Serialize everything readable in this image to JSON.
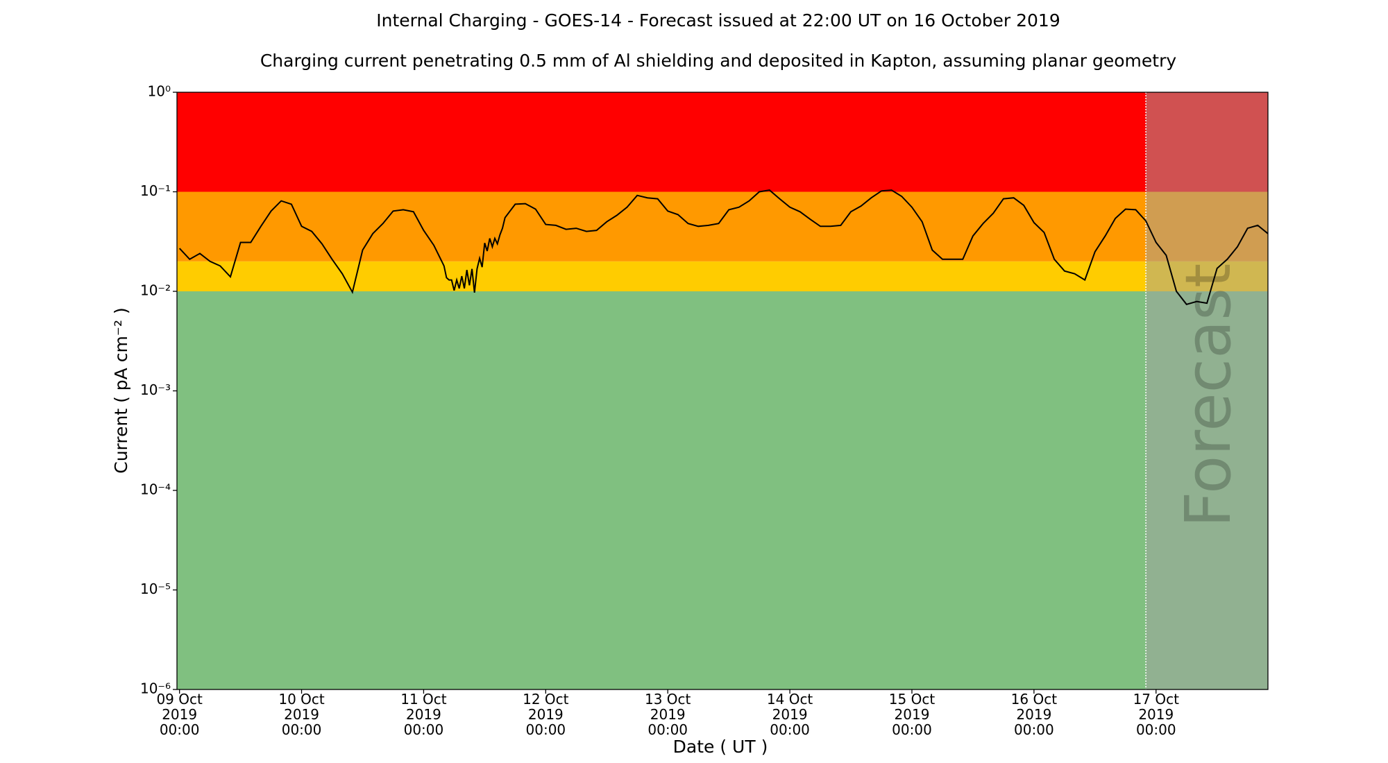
{
  "chart_data": {
    "type": "line",
    "title": "Internal Charging - GOES-14 - Forecast issued at 22:00 UT on 16 October 2019",
    "subtitle": "Charging current penetrating 0.5 mm of Al shielding and deposited in Kapton, assuming planar geometry",
    "x_label": "Date ( UT )",
    "y_label": "Current ( pA cm⁻² )",
    "log_y": true,
    "ylim": [
      1e-06,
      1
    ],
    "yticks": [
      {
        "value": 1,
        "label": "10⁰"
      },
      {
        "value": 0.1,
        "label": "10⁻¹"
      },
      {
        "value": 0.01,
        "label": "10⁻²"
      },
      {
        "value": 0.001,
        "label": "10⁻³"
      },
      {
        "value": 0.0001,
        "label": "10⁻⁴"
      },
      {
        "value": 1e-05,
        "label": "10⁻⁵"
      },
      {
        "value": 1e-06,
        "label": "10⁻⁶"
      }
    ],
    "xlim": [
      "2019-10-08T23:30",
      "2019-10-17T22:00"
    ],
    "xticks": [
      {
        "value": "2019-10-09T00:00",
        "label": "09 Oct\n2019\n00:00"
      },
      {
        "value": "2019-10-10T00:00",
        "label": "10 Oct\n2019\n00:00"
      },
      {
        "value": "2019-10-11T00:00",
        "label": "11 Oct\n2019\n00:00"
      },
      {
        "value": "2019-10-12T00:00",
        "label": "12 Oct\n2019\n00:00"
      },
      {
        "value": "2019-10-13T00:00",
        "label": "13 Oct\n2019\n00:00"
      },
      {
        "value": "2019-10-14T00:00",
        "label": "14 Oct\n2019\n00:00"
      },
      {
        "value": "2019-10-15T00:00",
        "label": "15 Oct\n2019\n00:00"
      },
      {
        "value": "2019-10-16T00:00",
        "label": "16 Oct\n2019\n00:00"
      },
      {
        "value": "2019-10-17T00:00",
        "label": "17 Oct\n2019\n00:00"
      }
    ],
    "band_thresholds": [
      0.01,
      0.02,
      0.1
    ],
    "band_colors": [
      "#80c080",
      "#ffcc00",
      "#ff9900",
      "#ff0000"
    ],
    "forecast": {
      "start": "2019-10-16T22:00",
      "label": "Forecast",
      "color": "#a2a2a2",
      "opacity": 0.5
    },
    "color": "#000000",
    "x": [
      "2019-10-09T00:00",
      "2019-10-09T02:00",
      "2019-10-09T04:00",
      "2019-10-09T06:00",
      "2019-10-09T08:00",
      "2019-10-09T10:00",
      "2019-10-09T12:00",
      "2019-10-09T14:00",
      "2019-10-09T16:00",
      "2019-10-09T18:00",
      "2019-10-09T20:00",
      "2019-10-09T22:00",
      "2019-10-10T00:00",
      "2019-10-10T02:00",
      "2019-10-10T04:00",
      "2019-10-10T06:00",
      "2019-10-10T08:00",
      "2019-10-10T10:00",
      "2019-10-10T12:00",
      "2019-10-10T14:00",
      "2019-10-10T16:00",
      "2019-10-10T18:00",
      "2019-10-10T20:00",
      "2019-10-10T22:00",
      "2019-10-11T00:00",
      "2019-10-11T02:00",
      "2019-10-11T04:00",
      "2019-10-11T04:30",
      "2019-10-11T05:00",
      "2019-10-11T05:30",
      "2019-10-11T06:00",
      "2019-10-11T06:30",
      "2019-10-11T07:00",
      "2019-10-11T07:30",
      "2019-10-11T08:00",
      "2019-10-11T08:30",
      "2019-10-11T09:00",
      "2019-10-11T09:30",
      "2019-10-11T10:00",
      "2019-10-11T10:30",
      "2019-10-11T11:00",
      "2019-10-11T11:30",
      "2019-10-11T12:00",
      "2019-10-11T12:30",
      "2019-10-11T13:00",
      "2019-10-11T13:30",
      "2019-10-11T14:00",
      "2019-10-11T14:30",
      "2019-10-11T15:00",
      "2019-10-11T15:30",
      "2019-10-11T16:00",
      "2019-10-11T18:00",
      "2019-10-11T20:00",
      "2019-10-11T22:00",
      "2019-10-12T00:00",
      "2019-10-12T02:00",
      "2019-10-12T04:00",
      "2019-10-12T06:00",
      "2019-10-12T08:00",
      "2019-10-12T10:00",
      "2019-10-12T12:00",
      "2019-10-12T14:00",
      "2019-10-12T16:00",
      "2019-10-12T18:00",
      "2019-10-12T20:00",
      "2019-10-12T22:00",
      "2019-10-13T00:00",
      "2019-10-13T02:00",
      "2019-10-13T04:00",
      "2019-10-13T06:00",
      "2019-10-13T08:00",
      "2019-10-13T10:00",
      "2019-10-13T12:00",
      "2019-10-13T14:00",
      "2019-10-13T16:00",
      "2019-10-13T18:00",
      "2019-10-13T20:00",
      "2019-10-13T22:00",
      "2019-10-14T00:00",
      "2019-10-14T02:00",
      "2019-10-14T04:00",
      "2019-10-14T06:00",
      "2019-10-14T08:00",
      "2019-10-14T10:00",
      "2019-10-14T12:00",
      "2019-10-14T14:00",
      "2019-10-14T16:00",
      "2019-10-14T18:00",
      "2019-10-14T20:00",
      "2019-10-14T22:00",
      "2019-10-15T00:00",
      "2019-10-15T02:00",
      "2019-10-15T04:00",
      "2019-10-15T06:00",
      "2019-10-15T08:00",
      "2019-10-15T10:00",
      "2019-10-15T12:00",
      "2019-10-15T14:00",
      "2019-10-15T16:00",
      "2019-10-15T18:00",
      "2019-10-15T20:00",
      "2019-10-15T22:00",
      "2019-10-16T00:00",
      "2019-10-16T02:00",
      "2019-10-16T04:00",
      "2019-10-16T06:00",
      "2019-10-16T08:00",
      "2019-10-16T10:00",
      "2019-10-16T12:00",
      "2019-10-16T14:00",
      "2019-10-16T16:00",
      "2019-10-16T18:00",
      "2019-10-16T20:00",
      "2019-10-16T22:00",
      "2019-10-17T00:00",
      "2019-10-17T02:00",
      "2019-10-17T04:00",
      "2019-10-17T06:00",
      "2019-10-17T08:00",
      "2019-10-17T10:00",
      "2019-10-17T12:00",
      "2019-10-17T14:00",
      "2019-10-17T16:00",
      "2019-10-17T18:00",
      "2019-10-17T20:00",
      "2019-10-17T22:00"
    ],
    "values": [
      0.027,
      0.021,
      0.024,
      0.02,
      0.018,
      0.014,
      0.031,
      0.031,
      0.045,
      0.064,
      0.081,
      0.075,
      0.045,
      0.04,
      0.03,
      0.021,
      0.015,
      0.0098,
      0.026,
      0.038,
      0.048,
      0.064,
      0.066,
      0.063,
      0.041,
      0.029,
      0.018,
      0.0137,
      0.013,
      0.013,
      0.0102,
      0.013,
      0.0107,
      0.0142,
      0.0107,
      0.0164,
      0.0115,
      0.0168,
      0.0097,
      0.0168,
      0.0215,
      0.0175,
      0.0306,
      0.0254,
      0.034,
      0.028,
      0.034,
      0.03,
      0.037,
      0.043,
      0.055,
      0.075,
      0.076,
      0.067,
      0.047,
      0.046,
      0.042,
      0.043,
      0.04,
      0.041,
      0.05,
      0.058,
      0.07,
      0.092,
      0.087,
      0.085,
      0.064,
      0.059,
      0.048,
      0.045,
      0.046,
      0.048,
      0.066,
      0.07,
      0.081,
      0.1,
      0.104,
      0.085,
      0.07,
      0.063,
      0.053,
      0.045,
      0.045,
      0.046,
      0.063,
      0.072,
      0.087,
      0.102,
      0.104,
      0.09,
      0.07,
      0.05,
      0.026,
      0.021,
      0.021,
      0.021,
      0.036,
      0.048,
      0.061,
      0.085,
      0.087,
      0.073,
      0.049,
      0.039,
      0.021,
      0.016,
      0.015,
      0.013,
      0.025,
      0.036,
      0.054,
      0.067,
      0.066,
      0.051,
      0.031,
      0.023,
      0.01,
      0.0074,
      0.0079,
      0.0076,
      0.017,
      0.021,
      0.028,
      0.043,
      0.046,
      0.038
    ]
  }
}
